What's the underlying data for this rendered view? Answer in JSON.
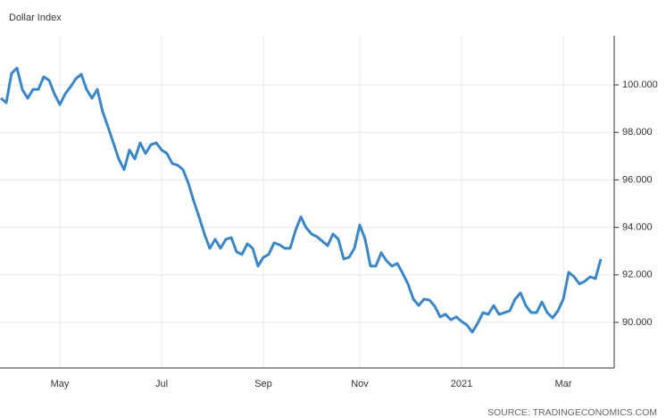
{
  "chart_data": {
    "type": "line",
    "title": "Dollar Index",
    "source": "SOURCE: TRADINGECONOMICS.COM",
    "categories": [
      null,
      null,
      null,
      null,
      null,
      null,
      null,
      null,
      null,
      null,
      null,
      "May",
      null,
      null,
      null,
      null,
      null,
      null,
      null,
      null,
      null,
      null,
      null,
      null,
      null,
      null,
      null,
      null,
      null,
      null,
      "Jul",
      null,
      null,
      null,
      null,
      null,
      null,
      null,
      null,
      null,
      null,
      null,
      null,
      null,
      null,
      null,
      null,
      null,
      null,
      "Sep",
      null,
      null,
      null,
      null,
      null,
      null,
      null,
      null,
      null,
      null,
      null,
      null,
      null,
      null,
      null,
      null,
      null,
      "Nov",
      null,
      null,
      null,
      null,
      null,
      null,
      null,
      null,
      null,
      null,
      null,
      null,
      null,
      null,
      null,
      null,
      null,
      null,
      "2021",
      null,
      null,
      null,
      null,
      null,
      null,
      null,
      null,
      null,
      null,
      null,
      null,
      null,
      null,
      null,
      null,
      null,
      null,
      "Mar",
      null,
      null,
      null,
      null,
      null,
      null,
      null
    ],
    "series": [
      {
        "name": "Dollar Index",
        "color": "#3a86c6",
        "values": [
          99.44,
          99.25,
          100.49,
          100.71,
          99.81,
          99.44,
          99.81,
          99.81,
          100.34,
          100.19,
          99.62,
          99.17,
          99.62,
          99.92,
          100.26,
          100.45,
          99.81,
          99.44,
          99.81,
          98.87,
          98.23,
          97.56,
          96.88,
          96.43,
          97.26,
          96.88,
          97.56,
          97.11,
          97.48,
          97.56,
          97.26,
          97.11,
          96.69,
          96.62,
          96.43,
          95.86,
          95.11,
          94.44,
          93.72,
          93.12,
          93.5,
          93.12,
          93.5,
          93.57,
          92.97,
          92.86,
          93.31,
          93.12,
          92.37,
          92.74,
          92.86,
          93.35,
          93.27,
          93.12,
          93.12,
          93.87,
          94.44,
          93.98,
          93.72,
          93.61,
          93.42,
          93.23,
          93.72,
          93.5,
          92.67,
          92.74,
          93.12,
          94.1,
          93.5,
          92.37,
          92.37,
          92.93,
          92.59,
          92.37,
          92.48,
          92.07,
          91.62,
          90.98,
          90.71,
          90.98,
          90.94,
          90.68,
          90.23,
          90.34,
          90.11,
          90.23,
          90.04,
          89.89,
          89.59,
          89.96,
          90.41,
          90.34,
          90.71,
          90.34,
          90.41,
          90.49,
          90.98,
          91.24,
          90.71,
          90.41,
          90.41,
          90.86,
          90.41,
          90.19,
          90.49,
          90.98,
          92.11,
          91.92,
          91.62,
          91.73,
          91.92,
          91.84,
          92.67
        ]
      }
    ],
    "ylim": [
      88.08,
      102.07
    ],
    "yticks": [
      {
        "value": 90,
        "label": "90.000"
      },
      {
        "value": 92,
        "label": "92.000"
      },
      {
        "value": 94,
        "label": "94.000"
      },
      {
        "value": 96,
        "label": "96.000"
      },
      {
        "value": 98,
        "label": "98.000"
      },
      {
        "value": 100,
        "label": "100.000"
      }
    ],
    "grid": true
  }
}
